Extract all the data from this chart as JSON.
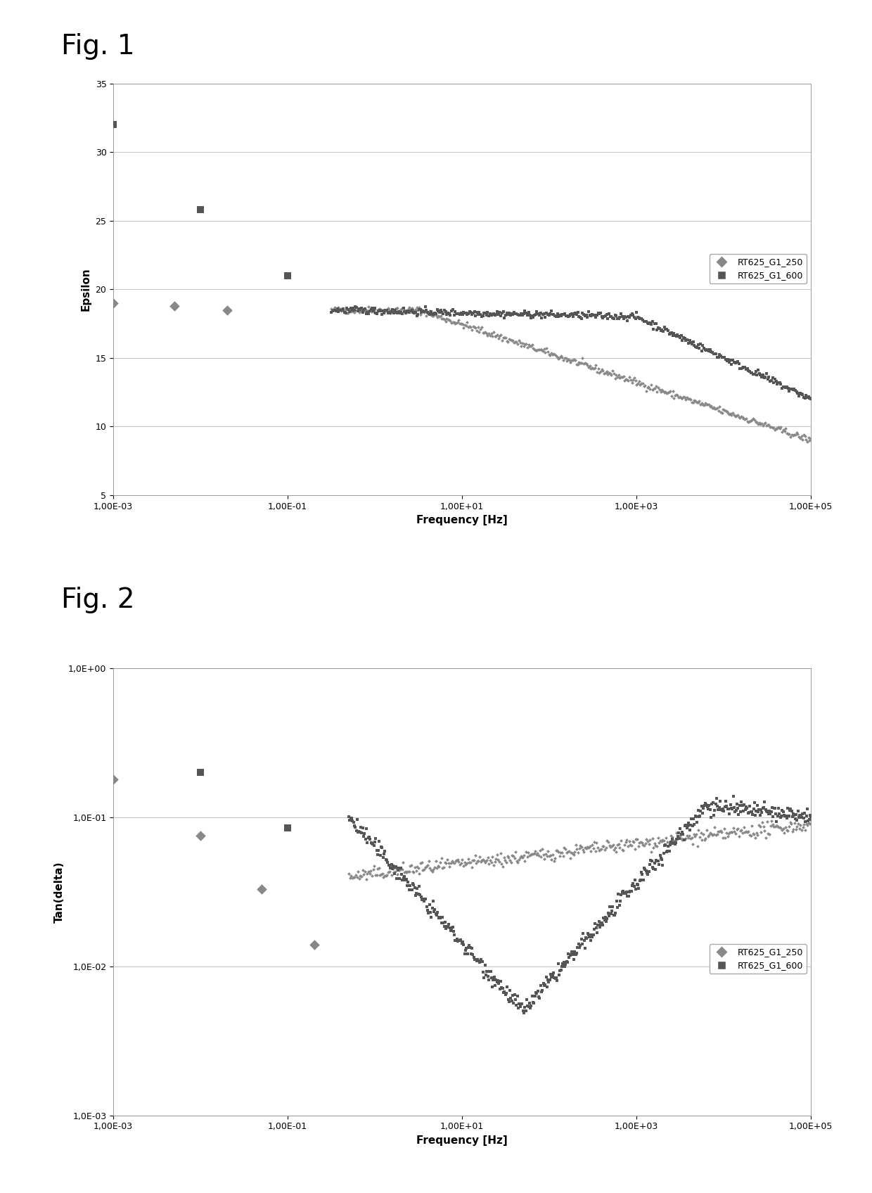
{
  "fig1_label": "Fig. 1",
  "fig2_label": "Fig. 2",
  "fig1_ylabel": "Epsilon",
  "fig1_xlabel": "Frequency [Hz]",
  "fig2_ylabel": "Tan(delta)",
  "fig2_xlabel": "Frequency [Hz]",
  "legend_label1": "RT625_G1_250",
  "legend_label2": "RT625_G1_600",
  "color_250": "#888888",
  "color_600": "#555555",
  "background": "#ffffff",
  "fig1_ylim": [
    5,
    35
  ],
  "fig1_yticks": [
    5,
    10,
    15,
    20,
    25,
    30,
    35
  ],
  "xtick_labels": [
    "1,00E-03",
    "1,00E-01",
    "1,00E+01",
    "1,00E+03",
    "1,00E+05"
  ],
  "fig2_ytick_labels": [
    "1,0E-03",
    "1,0E-02",
    "1,0E-01",
    "1,0E+00"
  ]
}
